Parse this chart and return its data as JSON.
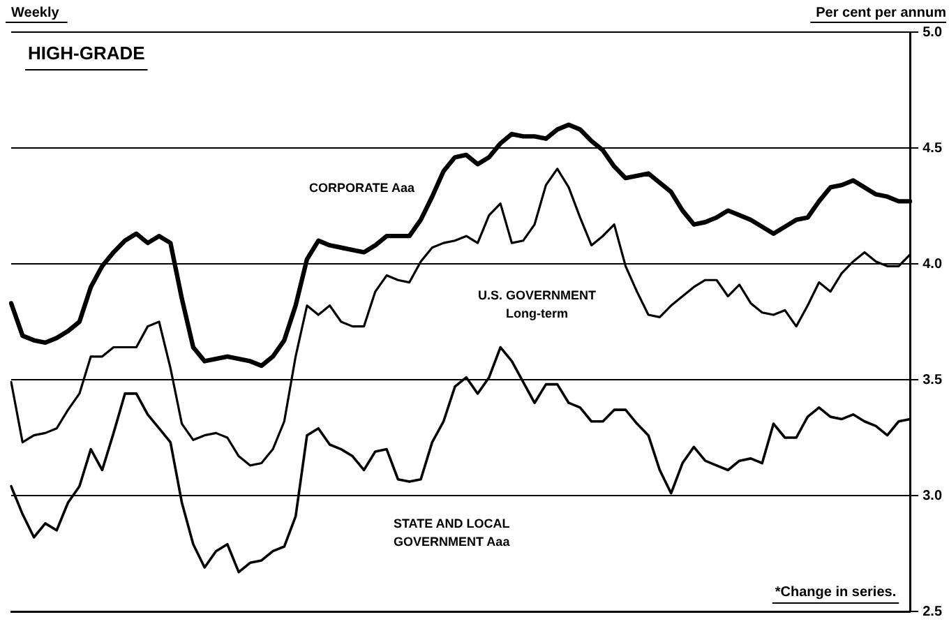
{
  "chart_data": {
    "type": "line",
    "title": "HIGH-GRADE",
    "subtitle": "Weekly",
    "ylabel": "Per cent per annum",
    "annotations": [
      "*Change in series."
    ],
    "categories": [
      null,
      null,
      null,
      null,
      null,
      null,
      null,
      null,
      null,
      null,
      null,
      null,
      null,
      null,
      null,
      null,
      null,
      null,
      null,
      null,
      null,
      null,
      null,
      null,
      null,
      null,
      null,
      null,
      null,
      null,
      null,
      null,
      null,
      null,
      null,
      null,
      null,
      null,
      null,
      null,
      null,
      null,
      null,
      null,
      null,
      null,
      null,
      null,
      null,
      null,
      null,
      null,
      null,
      null,
      null,
      null,
      null,
      null,
      null,
      null,
      null,
      null,
      null,
      null,
      null,
      null,
      null,
      null,
      null,
      null,
      null,
      null,
      null,
      null,
      null,
      null,
      null,
      null,
      null,
      null
    ],
    "series": [
      {
        "name": "CORPORATE Aaa",
        "color": "#000000",
        "values": [
          3.83,
          3.69,
          3.67,
          3.66,
          3.68,
          3.71,
          3.75,
          3.9,
          3.99,
          4.05,
          4.1,
          4.13,
          4.09,
          4.12,
          4.09,
          3.85,
          3.64,
          3.58,
          3.59,
          3.6,
          3.59,
          3.58,
          3.56,
          3.6,
          3.67,
          3.82,
          4.02,
          4.1,
          4.08,
          4.07,
          4.06,
          4.05,
          4.08,
          4.12,
          4.12,
          4.12,
          4.19,
          4.29,
          4.4,
          4.46,
          4.47,
          4.43,
          4.46,
          4.52,
          4.56,
          4.55,
          4.55,
          4.54,
          4.58,
          4.6,
          4.58,
          4.53,
          4.49,
          4.42,
          4.37,
          4.38,
          4.39,
          4.35,
          4.31,
          4.23,
          4.17,
          4.18,
          4.2,
          4.23,
          4.21,
          4.19,
          4.16,
          4.13,
          4.16,
          4.19,
          4.2,
          4.27,
          4.33,
          4.34,
          4.36,
          4.33,
          4.3,
          4.29,
          4.27,
          4.27
        ]
      },
      {
        "name": "U.S. GOVERNMENT Long-term",
        "color": "#000000",
        "values": [
          3.49,
          3.23,
          3.26,
          3.27,
          3.29,
          3.37,
          3.44,
          3.6,
          3.6,
          3.64,
          3.64,
          3.64,
          3.73,
          3.75,
          3.55,
          3.31,
          3.24,
          3.26,
          3.27,
          3.25,
          3.17,
          3.13,
          3.14,
          3.2,
          3.32,
          3.6,
          3.82,
          3.78,
          3.82,
          3.75,
          3.73,
          3.73,
          3.88,
          3.95,
          3.93,
          3.92,
          4.01,
          4.07,
          4.09,
          4.1,
          4.12,
          4.09,
          4.21,
          4.26,
          4.09,
          4.1,
          4.17,
          4.34,
          4.41,
          4.33,
          4.2,
          4.08,
          4.12,
          4.17,
          3.99,
          3.88,
          3.78,
          3.77,
          3.82,
          3.86,
          3.9,
          3.93,
          3.93,
          3.86,
          3.91,
          3.83,
          3.79,
          3.78,
          3.8,
          3.73,
          3.82,
          3.92,
          3.88,
          3.96,
          4.01,
          4.05,
          4.01,
          3.99,
          3.99,
          4.04
        ]
      },
      {
        "name": "STATE AND LOCAL GOVERNMENT Aaa",
        "color": "#000000",
        "values": [
          3.04,
          2.92,
          2.82,
          2.88,
          2.85,
          2.97,
          3.04,
          3.2,
          3.11,
          3.27,
          3.44,
          3.44,
          3.35,
          3.29,
          3.23,
          2.97,
          2.79,
          2.69,
          2.76,
          2.79,
          2.67,
          2.71,
          2.72,
          2.76,
          2.78,
          2.91,
          3.26,
          3.29,
          3.22,
          3.2,
          3.17,
          3.11,
          3.19,
          3.2,
          3.07,
          3.06,
          3.07,
          3.23,
          3.32,
          3.47,
          3.51,
          3.44,
          3.51,
          3.64,
          3.58,
          3.49,
          3.4,
          3.48,
          3.48,
          3.4,
          3.38,
          3.32,
          3.32,
          3.37,
          3.37,
          3.31,
          3.26,
          3.11,
          3.01,
          3.14,
          3.21,
          3.15,
          3.13,
          3.11,
          3.15,
          3.16,
          3.14,
          3.31,
          3.25,
          3.25,
          3.34,
          3.38,
          3.34,
          3.33,
          3.35,
          3.32,
          3.3,
          3.26,
          3.32,
          3.33
        ]
      }
    ],
    "ylim": [
      2.5,
      5.0
    ],
    "yticks": [
      {
        "value": 5.0,
        "label": "5.0"
      },
      {
        "value": 4.5,
        "label": "4.5"
      },
      {
        "value": 4.0,
        "label": "4.0"
      },
      {
        "value": 3.5,
        "label": "3.5"
      },
      {
        "value": 3.0,
        "label": "3.0"
      },
      {
        "value": 2.5,
        "label": "2.5"
      }
    ],
    "grid": "y",
    "legend": false,
    "marker": "none",
    "line_style": "solid"
  }
}
